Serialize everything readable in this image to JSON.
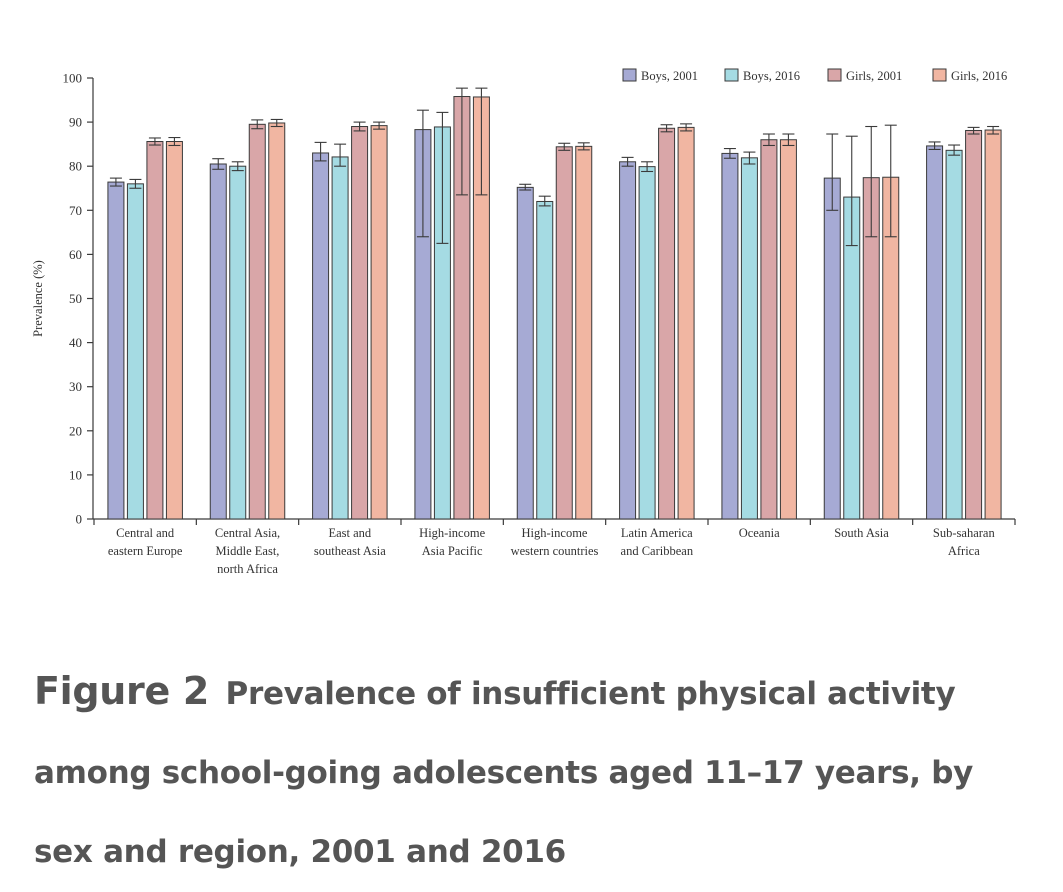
{
  "chart_data": {
    "type": "bar",
    "ylabel": "Prevalence (%)",
    "ylim": [
      0,
      100
    ],
    "yticks": [
      "0",
      "10",
      "20",
      "30",
      "40",
      "50",
      "60",
      "70",
      "80",
      "90",
      "100"
    ],
    "legend_position": "top-right",
    "categories": [
      [
        "Central and",
        "eastern Europe"
      ],
      [
        "Central Asia,",
        "Middle East,",
        "north Africa"
      ],
      [
        "East and",
        "southeast Asia"
      ],
      [
        "High-income",
        "Asia Pacific"
      ],
      [
        "High-income",
        "western countries"
      ],
      [
        "Latin America",
        "and Caribbean"
      ],
      [
        "Oceania"
      ],
      [
        "South Asia"
      ],
      [
        "Sub-saharan",
        "Africa"
      ]
    ],
    "series": [
      {
        "name": "Boys, 2001",
        "color": "#a6aad4",
        "values": [
          76.4,
          80.5,
          83.0,
          88.3,
          75.2,
          81.0,
          82.9,
          77.3,
          84.6
        ],
        "err_low": [
          75.5,
          79.3,
          81.2,
          64.0,
          74.6,
          80.0,
          81.8,
          70.0,
          83.8
        ],
        "err_high": [
          77.3,
          81.7,
          85.4,
          92.7,
          75.9,
          82.0,
          84.0,
          87.3,
          85.5
        ]
      },
      {
        "name": "Boys, 2016",
        "color": "#a5dbe3",
        "values": [
          76.0,
          80.0,
          82.1,
          88.9,
          72.0,
          79.9,
          81.9,
          73.0,
          83.6
        ],
        "err_low": [
          75.0,
          79.0,
          80.0,
          62.5,
          71.0,
          78.8,
          80.5,
          62.0,
          82.5
        ],
        "err_high": [
          77.0,
          81.0,
          85.0,
          92.2,
          73.2,
          81.0,
          83.2,
          86.8,
          84.8
        ]
      },
      {
        "name": "Girls, 2001",
        "color": "#d9a6a8",
        "values": [
          85.6,
          89.5,
          89.0,
          95.8,
          84.4,
          88.6,
          86.0,
          77.4,
          88.1
        ],
        "err_low": [
          84.8,
          88.5,
          88.0,
          73.5,
          83.6,
          87.8,
          84.7,
          64.0,
          87.3
        ],
        "err_high": [
          86.4,
          90.5,
          90.0,
          97.7,
          85.2,
          89.4,
          87.3,
          89.0,
          88.8
        ]
      },
      {
        "name": "Girls, 2016",
        "color": "#f1b6a2",
        "values": [
          85.6,
          89.8,
          89.2,
          95.7,
          84.5,
          88.8,
          86.0,
          77.5,
          88.2
        ],
        "err_low": [
          84.7,
          89.0,
          88.4,
          73.5,
          83.7,
          88.0,
          84.7,
          64.0,
          87.3
        ],
        "err_high": [
          86.5,
          90.6,
          90.0,
          97.7,
          85.3,
          89.6,
          87.3,
          89.3,
          89.0
        ]
      }
    ]
  },
  "caption": {
    "figure_label": "Figure 2",
    "text": "Prevalence of insufficient physical activity among school-going adolescents aged 11–17 years, by sex and region, 2001 and 2016"
  }
}
